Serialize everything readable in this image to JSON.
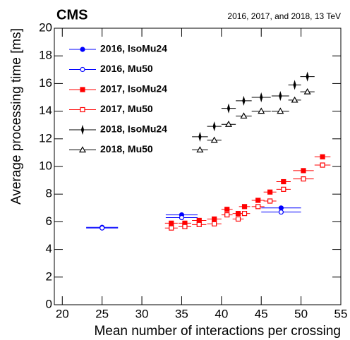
{
  "chart_data": {
    "type": "scatter",
    "experiment": "CMS",
    "subtitle": "2016, 2017, and 2018, 13 TeV",
    "x_label": "Mean number of interactions per crossing",
    "y_label": "Average processing time [ms]",
    "xlim": [
      19,
      55
    ],
    "xticks": [
      20,
      25,
      30,
      35,
      40,
      45,
      50,
      55
    ],
    "ylim": [
      0,
      20
    ],
    "yticks": [
      0,
      2,
      4,
      6,
      8,
      10,
      12,
      14,
      16,
      18,
      20
    ],
    "legend": "upper left",
    "series": [
      {
        "name": "2016, IsoMu24",
        "color": "#0000ff",
        "marker": "circle",
        "filled": true,
        "x": [
          25,
          35,
          47.5
        ],
        "values": [
          5.6,
          6.5,
          7.0
        ],
        "xerr": [
          2,
          2,
          2.5
        ]
      },
      {
        "name": "2016, Mu50",
        "color": "#0000ff",
        "marker": "circle",
        "filled": false,
        "x": [
          25,
          35,
          47.5
        ],
        "values": [
          5.55,
          6.3,
          6.7
        ],
        "xerr": [
          2,
          2,
          2.5
        ]
      },
      {
        "name": "2017, IsoMu24",
        "color": "#ff0000",
        "marker": "square",
        "filled": true,
        "x": [
          33.7,
          35.4,
          37.2,
          39.1,
          40.7,
          42.1,
          42.9,
          44.6,
          46.1,
          47.8,
          50.3,
          52.7
        ],
        "values": [
          5.9,
          5.9,
          6.1,
          6.2,
          6.9,
          6.6,
          7.1,
          7.55,
          8.15,
          8.9,
          9.7,
          10.7
        ],
        "xerr": [
          0.8,
          0.8,
          0.9,
          0.9,
          0.7,
          0.7,
          0.7,
          0.8,
          0.8,
          0.9,
          1.3,
          1.0
        ]
      },
      {
        "name": "2017, Mu50",
        "color": "#ff0000",
        "marker": "square",
        "filled": false,
        "x": [
          33.7,
          35.4,
          37.2,
          39.1,
          40.7,
          42.1,
          42.9,
          44.6,
          46.1,
          47.8,
          50.3,
          52.7
        ],
        "values": [
          5.55,
          5.65,
          5.8,
          5.85,
          6.5,
          6.2,
          6.6,
          7.1,
          7.5,
          8.35,
          9.1,
          10.1
        ],
        "xerr": [
          0.8,
          0.8,
          0.9,
          0.9,
          0.7,
          0.7,
          0.7,
          0.8,
          0.8,
          0.9,
          1.3,
          1.0
        ]
      },
      {
        "name": "2018, IsoMu24",
        "color": "#000000",
        "marker": "star",
        "filled": true,
        "x": [
          37.3,
          39.1,
          40.9,
          42.8,
          45.0,
          47.4,
          49.2,
          50.8
        ],
        "values": [
          12.15,
          12.9,
          14.2,
          14.75,
          15.0,
          15.1,
          15.9,
          16.5
        ],
        "xerr": [
          1.0,
          0.9,
          0.9,
          1.0,
          1.2,
          1.1,
          0.8,
          0.9
        ]
      },
      {
        "name": "2018, Mu50",
        "color": "#000000",
        "marker": "triangle",
        "filled": false,
        "x": [
          37.3,
          39.1,
          40.9,
          42.8,
          45.0,
          47.4,
          49.2,
          50.8
        ],
        "values": [
          11.2,
          11.9,
          13.05,
          13.65,
          14.0,
          14.0,
          14.8,
          15.4
        ],
        "xerr": [
          1.0,
          0.9,
          0.9,
          1.0,
          1.2,
          1.1,
          0.8,
          0.9
        ]
      }
    ]
  }
}
